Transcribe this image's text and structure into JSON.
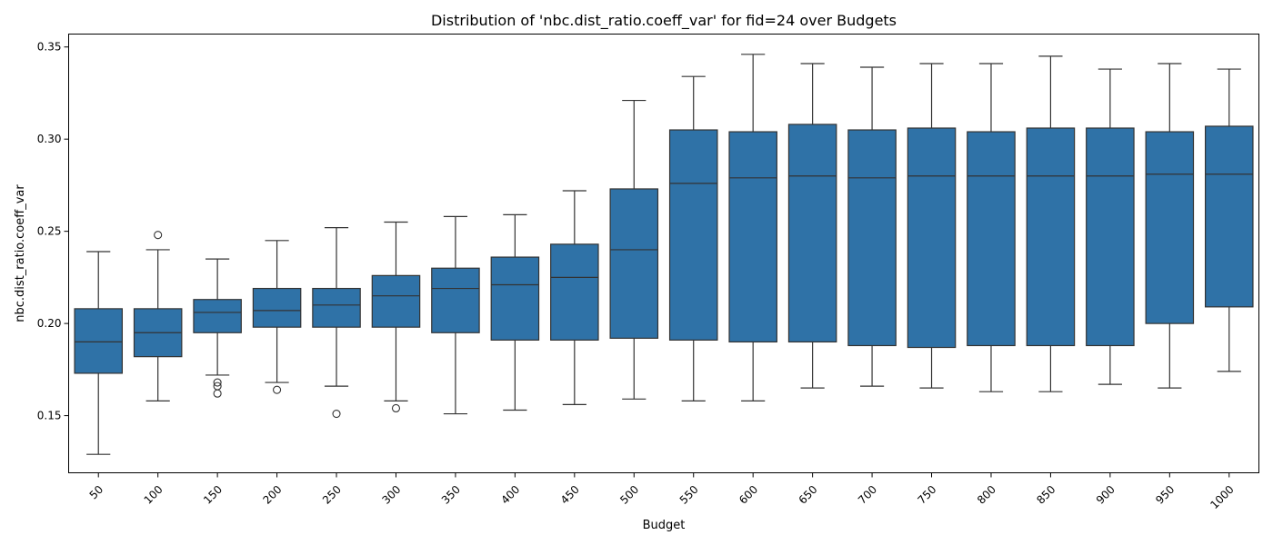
{
  "chart_data": {
    "type": "box",
    "title": "Distribution of 'nbc.dist_ratio.coeff_var' for fid=24 over Budgets",
    "xlabel": "Budget",
    "ylabel": "nbc.dist_ratio.coeff_var",
    "ylim": [
      0.119,
      0.357
    ],
    "yticks": [
      0.15,
      0.2,
      0.25,
      0.3,
      0.35
    ],
    "ytick_labels": [
      "0.15",
      "0.20",
      "0.25",
      "0.30",
      "0.35"
    ],
    "box_color": "#2f72a7",
    "line_color": "#333333",
    "grid": false,
    "categories": [
      "50",
      "100",
      "150",
      "200",
      "250",
      "300",
      "350",
      "400",
      "450",
      "500",
      "550",
      "600",
      "650",
      "700",
      "750",
      "800",
      "850",
      "900",
      "950",
      "1000"
    ],
    "boxes": [
      {
        "category": "50",
        "whisker_low": 0.129,
        "q1": 0.173,
        "median": 0.19,
        "q3": 0.208,
        "whisker_high": 0.239,
        "outliers": []
      },
      {
        "category": "100",
        "whisker_low": 0.158,
        "q1": 0.182,
        "median": 0.195,
        "q3": 0.208,
        "whisker_high": 0.24,
        "outliers": [
          0.248
        ]
      },
      {
        "category": "150",
        "whisker_low": 0.172,
        "q1": 0.195,
        "median": 0.206,
        "q3": 0.213,
        "whisker_high": 0.235,
        "outliers": [
          0.168,
          0.166,
          0.162
        ]
      },
      {
        "category": "200",
        "whisker_low": 0.168,
        "q1": 0.198,
        "median": 0.207,
        "q3": 0.219,
        "whisker_high": 0.245,
        "outliers": [
          0.164
        ]
      },
      {
        "category": "250",
        "whisker_low": 0.166,
        "q1": 0.198,
        "median": 0.21,
        "q3": 0.219,
        "whisker_high": 0.252,
        "outliers": [
          0.151
        ]
      },
      {
        "category": "300",
        "whisker_low": 0.158,
        "q1": 0.198,
        "median": 0.215,
        "q3": 0.226,
        "whisker_high": 0.255,
        "outliers": [
          0.154
        ]
      },
      {
        "category": "350",
        "whisker_low": 0.151,
        "q1": 0.195,
        "median": 0.219,
        "q3": 0.23,
        "whisker_high": 0.258,
        "outliers": []
      },
      {
        "category": "400",
        "whisker_low": 0.153,
        "q1": 0.191,
        "median": 0.221,
        "q3": 0.236,
        "whisker_high": 0.259,
        "outliers": []
      },
      {
        "category": "450",
        "whisker_low": 0.156,
        "q1": 0.191,
        "median": 0.225,
        "q3": 0.243,
        "whisker_high": 0.272,
        "outliers": []
      },
      {
        "category": "500",
        "whisker_low": 0.159,
        "q1": 0.192,
        "median": 0.24,
        "q3": 0.273,
        "whisker_high": 0.321,
        "outliers": []
      },
      {
        "category": "550",
        "whisker_low": 0.158,
        "q1": 0.191,
        "median": 0.276,
        "q3": 0.305,
        "whisker_high": 0.334,
        "outliers": []
      },
      {
        "category": "600",
        "whisker_low": 0.158,
        "q1": 0.19,
        "median": 0.279,
        "q3": 0.304,
        "whisker_high": 0.346,
        "outliers": []
      },
      {
        "category": "650",
        "whisker_low": 0.165,
        "q1": 0.19,
        "median": 0.28,
        "q3": 0.308,
        "whisker_high": 0.341,
        "outliers": []
      },
      {
        "category": "700",
        "whisker_low": 0.166,
        "q1": 0.188,
        "median": 0.279,
        "q3": 0.305,
        "whisker_high": 0.339,
        "outliers": []
      },
      {
        "category": "750",
        "whisker_low": 0.165,
        "q1": 0.187,
        "median": 0.28,
        "q3": 0.306,
        "whisker_high": 0.341,
        "outliers": []
      },
      {
        "category": "800",
        "whisker_low": 0.163,
        "q1": 0.188,
        "median": 0.28,
        "q3": 0.304,
        "whisker_high": 0.341,
        "outliers": []
      },
      {
        "category": "850",
        "whisker_low": 0.163,
        "q1": 0.188,
        "median": 0.28,
        "q3": 0.306,
        "whisker_high": 0.345,
        "outliers": []
      },
      {
        "category": "900",
        "whisker_low": 0.167,
        "q1": 0.188,
        "median": 0.28,
        "q3": 0.306,
        "whisker_high": 0.338,
        "outliers": []
      },
      {
        "category": "950",
        "whisker_low": 0.165,
        "q1": 0.2,
        "median": 0.281,
        "q3": 0.304,
        "whisker_high": 0.341,
        "outliers": []
      },
      {
        "category": "1000",
        "whisker_low": 0.174,
        "q1": 0.209,
        "median": 0.281,
        "q3": 0.307,
        "whisker_high": 0.338,
        "outliers": []
      }
    ]
  }
}
